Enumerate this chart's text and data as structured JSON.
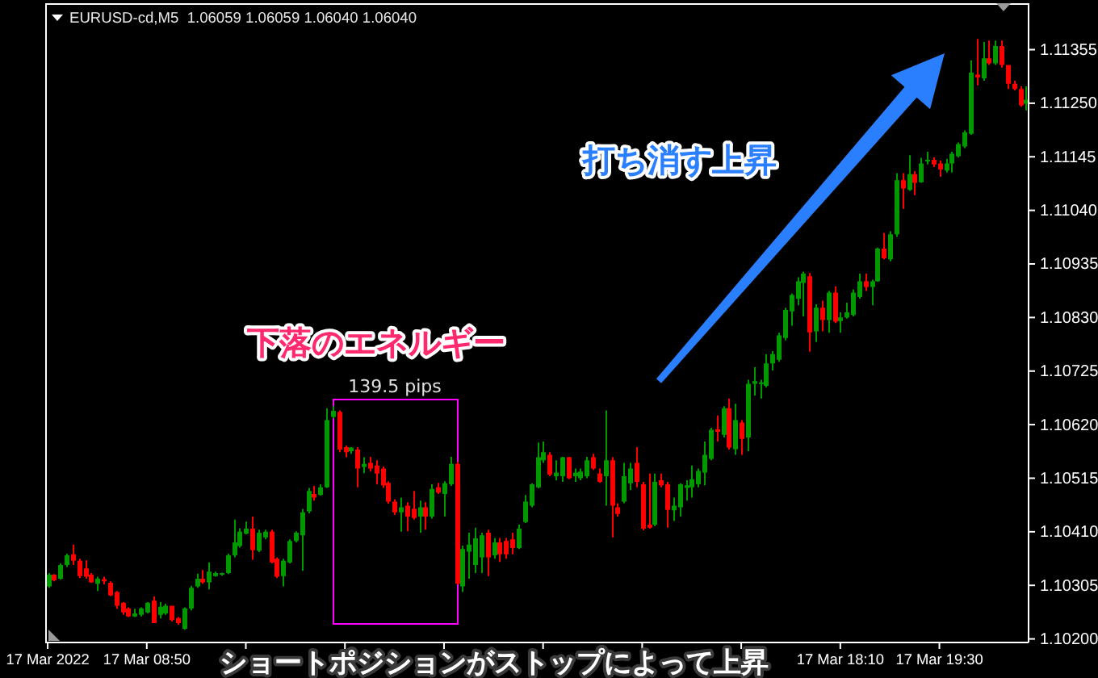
{
  "chart_data": {
    "type": "candlestick",
    "title": "EURUSD-cd,M5  1.06059 1.06059 1.06040 1.06040",
    "x": [
      "2022-03-17T07:30",
      "2022-03-17T07:35",
      "2022-03-17T07:40",
      "2022-03-17T07:45",
      "2022-03-17T07:50",
      "2022-03-17T07:55",
      "2022-03-17T08:00",
      "2022-03-17T08:05",
      "2022-03-17T08:10",
      "2022-03-17T08:15",
      "2022-03-17T08:20",
      "2022-03-17T08:25",
      "2022-03-17T08:30",
      "2022-03-17T08:35",
      "2022-03-17T08:40",
      "2022-03-17T08:45",
      "2022-03-17T08:50",
      "2022-03-17T08:55",
      "2022-03-17T09:00",
      "2022-03-17T09:05",
      "2022-03-17T09:10",
      "2022-03-17T09:15",
      "2022-03-17T09:20",
      "2022-03-17T09:25",
      "2022-03-17T09:30",
      "2022-03-17T09:35",
      "2022-03-17T09:40",
      "2022-03-17T09:45",
      "2022-03-17T09:50",
      "2022-03-17T09:55",
      "2022-03-17T10:00",
      "2022-03-17T10:05",
      "2022-03-17T10:10",
      "2022-03-17T10:15",
      "2022-03-17T10:20",
      "2022-03-17T10:25",
      "2022-03-17T10:30",
      "2022-03-17T10:35",
      "2022-03-17T10:40",
      "2022-03-17T10:45",
      "2022-03-17T10:50",
      "2022-03-17T10:55",
      "2022-03-17T11:00",
      "2022-03-17T11:05",
      "2022-03-17T11:10",
      "2022-03-17T11:15",
      "2022-03-17T11:20",
      "2022-03-17T11:25",
      "2022-03-17T11:30",
      "2022-03-17T11:35",
      "2022-03-17T11:40",
      "2022-03-17T11:45",
      "2022-03-17T11:50",
      "2022-03-17T11:55",
      "2022-03-17T12:00",
      "2022-03-17T12:05",
      "2022-03-17T12:10",
      "2022-03-17T12:15",
      "2022-03-17T12:20",
      "2022-03-17T12:25",
      "2022-03-17T12:30",
      "2022-03-17T12:35",
      "2022-03-17T12:40",
      "2022-03-17T12:45",
      "2022-03-17T12:50",
      "2022-03-17T12:55",
      "2022-03-17T13:00",
      "2022-03-17T13:05",
      "2022-03-17T13:10",
      "2022-03-17T13:15",
      "2022-03-17T13:20",
      "2022-03-17T13:25",
      "2022-03-17T13:30",
      "2022-03-17T13:35",
      "2022-03-17T13:40",
      "2022-03-17T13:45",
      "2022-03-17T13:50",
      "2022-03-17T13:55",
      "2022-03-17T14:00",
      "2022-03-17T14:05",
      "2022-03-17T14:10",
      "2022-03-17T14:15",
      "2022-03-17T14:20",
      "2022-03-17T14:25",
      "2022-03-17T14:30",
      "2022-03-17T14:35",
      "2022-03-17T14:40",
      "2022-03-17T14:45",
      "2022-03-17T14:50",
      "2022-03-17T14:55",
      "2022-03-17T15:00",
      "2022-03-17T15:05",
      "2022-03-17T15:10",
      "2022-03-17T15:15",
      "2022-03-17T15:20",
      "2022-03-17T15:25",
      "2022-03-17T15:30",
      "2022-03-17T15:35",
      "2022-03-17T15:40",
      "2022-03-17T15:45",
      "2022-03-17T15:50",
      "2022-03-17T15:55",
      "2022-03-17T16:00",
      "2022-03-17T16:05",
      "2022-03-17T16:10",
      "2022-03-17T16:15",
      "2022-03-17T16:20",
      "2022-03-17T16:25",
      "2022-03-17T16:30",
      "2022-03-17T16:35",
      "2022-03-17T16:40",
      "2022-03-17T16:45",
      "2022-03-17T16:50",
      "2022-03-17T16:55",
      "2022-03-17T17:00",
      "2022-03-17T17:05",
      "2022-03-17T17:10",
      "2022-03-17T17:15",
      "2022-03-17T17:20",
      "2022-03-17T17:25",
      "2022-03-17T17:30",
      "2022-03-17T17:35",
      "2022-03-17T17:40",
      "2022-03-17T17:45",
      "2022-03-17T17:50",
      "2022-03-17T17:55",
      "2022-03-17T18:00",
      "2022-03-17T18:05",
      "2022-03-17T18:10",
      "2022-03-17T18:15",
      "2022-03-17T18:20",
      "2022-03-17T18:25",
      "2022-03-17T18:30",
      "2022-03-17T18:35",
      "2022-03-17T18:40",
      "2022-03-17T18:45",
      "2022-03-17T18:50",
      "2022-03-17T18:55",
      "2022-03-17T19:00",
      "2022-03-17T19:05",
      "2022-03-17T19:10",
      "2022-03-17T19:15",
      "2022-03-17T19:20",
      "2022-03-17T19:25",
      "2022-03-17T19:30",
      "2022-03-17T19:35",
      "2022-03-17T19:40",
      "2022-03-17T19:45",
      "2022-03-17T19:50",
      "2022-03-17T19:55",
      "2022-03-17T20:00",
      "2022-03-17T20:05",
      "2022-03-17T20:10",
      "2022-03-17T20:15",
      "2022-03-17T20:20",
      "2022-03-17T20:25",
      "2022-03-17T20:30",
      "2022-03-17T20:35",
      "2022-03-17T20:40"
    ],
    "ohlc": [
      [
        1.10303,
        1.10329,
        1.103,
        1.10326
      ],
      [
        1.10326,
        1.10327,
        1.10313,
        1.10315
      ],
      [
        1.10318,
        1.10348,
        1.10316,
        1.10345
      ],
      [
        1.10345,
        1.10367,
        1.10341,
        1.10364
      ],
      [
        1.10366,
        1.10385,
        1.10345,
        1.10353
      ],
      [
        1.10353,
        1.10357,
        1.10319,
        1.10323
      ],
      [
        1.10338,
        1.10354,
        1.10318,
        1.10322
      ],
      [
        1.10326,
        1.10329,
        1.1031,
        1.10311
      ],
      [
        1.10308,
        1.10322,
        1.10294,
        1.10318
      ],
      [
        1.10317,
        1.10322,
        1.10307,
        1.10313
      ],
      [
        1.1031,
        1.10313,
        1.10284,
        1.10285
      ],
      [
        1.10292,
        1.10294,
        1.10259,
        1.10265
      ],
      [
        1.10271,
        1.10272,
        1.10247,
        1.10252
      ],
      [
        1.1026,
        1.10262,
        1.10243,
        1.10244
      ],
      [
        1.10244,
        1.10259,
        1.10243,
        1.1025
      ],
      [
        1.10247,
        1.10262,
        1.10244,
        1.1026
      ],
      [
        1.10252,
        1.10272,
        1.1025,
        1.10271
      ],
      [
        1.10275,
        1.10283,
        1.10231,
        1.10231
      ],
      [
        1.10247,
        1.10272,
        1.1024,
        1.10263
      ],
      [
        1.1025,
        1.10269,
        1.10247,
        1.10265
      ],
      [
        1.10265,
        1.10265,
        1.10234,
        1.10237
      ],
      [
        1.10241,
        1.10243,
        1.10228,
        1.10231
      ],
      [
        1.1022,
        1.10262,
        1.10218,
        1.1026
      ],
      [
        1.1026,
        1.10304,
        1.10256,
        1.103
      ],
      [
        1.10303,
        1.10328,
        1.103,
        1.10318
      ],
      [
        1.10318,
        1.10335,
        1.10308,
        1.10311
      ],
      [
        1.10311,
        1.1035,
        1.10297,
        1.10332
      ],
      [
        1.10323,
        1.10332,
        1.10322,
        1.10329
      ],
      [
        1.10326,
        1.1033,
        1.10324,
        1.10329
      ],
      [
        1.10329,
        1.10367,
        1.10327,
        1.10364
      ],
      [
        1.10364,
        1.10434,
        1.1036,
        1.10389
      ],
      [
        1.10382,
        1.10417,
        1.10379,
        1.1041
      ],
      [
        1.10406,
        1.1043,
        1.10405,
        1.10416
      ],
      [
        1.10416,
        1.1044,
        1.10355,
        1.10374
      ],
      [
        1.10373,
        1.10414,
        1.1037,
        1.10408
      ],
      [
        1.10399,
        1.10414,
        1.10395,
        1.1041
      ],
      [
        1.1041,
        1.10414,
        1.10348,
        1.1035
      ],
      [
        1.10357,
        1.1036,
        1.10319,
        1.10322
      ],
      [
        1.10323,
        1.10357,
        1.10303,
        1.10353
      ],
      [
        1.1035,
        1.10395,
        1.10348,
        1.10392
      ],
      [
        1.10392,
        1.10411,
        1.10389,
        1.10408
      ],
      [
        1.10403,
        1.10455,
        1.10334,
        1.10448
      ],
      [
        1.1045,
        1.10496,
        1.10446,
        1.1049
      ],
      [
        1.10484,
        1.105,
        1.10471,
        1.10477
      ],
      [
        1.10482,
        1.10503,
        1.10481,
        1.10497
      ],
      [
        1.10497,
        1.10652,
        1.10496,
        1.10629
      ],
      [
        1.10635,
        1.10656,
        1.10632,
        1.10647
      ],
      [
        1.10645,
        1.10648,
        1.10566,
        1.10571
      ],
      [
        1.10576,
        1.10579,
        1.10556,
        1.10566
      ],
      [
        1.10568,
        1.10576,
        1.10563,
        1.10575
      ],
      [
        1.10571,
        1.10576,
        1.10497,
        1.10534
      ],
      [
        1.10537,
        1.10556,
        1.10525,
        1.10543
      ],
      [
        1.10545,
        1.10557,
        1.10528,
        1.10534
      ],
      [
        1.1054,
        1.1055,
        1.10503,
        1.10524
      ],
      [
        1.10534,
        1.10538,
        1.10496,
        1.10501
      ],
      [
        1.10506,
        1.10509,
        1.10465,
        1.10469
      ],
      [
        1.10469,
        1.10474,
        1.10443,
        1.10448
      ],
      [
        1.10448,
        1.10477,
        1.1041,
        1.10458
      ],
      [
        1.10461,
        1.10468,
        1.10411,
        1.1044
      ],
      [
        1.10455,
        1.1049,
        1.10434,
        1.10437
      ],
      [
        1.1044,
        1.10471,
        1.10408,
        1.10458
      ],
      [
        1.10458,
        1.10468,
        1.10414,
        1.1044
      ],
      [
        1.1044,
        1.10503,
        1.10436,
        1.10494
      ],
      [
        1.10497,
        1.10506,
        1.10484,
        1.10487
      ],
      [
        1.10484,
        1.10509,
        1.1044,
        1.10505
      ],
      [
        1.10503,
        1.10557,
        1.105,
        1.10543
      ],
      [
        1.10543,
        1.10547,
        1.10307,
        1.10308
      ],
      [
        1.10303,
        1.10383,
        1.10292,
        1.10376
      ],
      [
        1.10371,
        1.10408,
        1.10318,
        1.10385
      ],
      [
        1.10345,
        1.10418,
        1.10329,
        1.10397
      ],
      [
        1.1036,
        1.10408,
        1.10329,
        1.10403
      ],
      [
        1.10408,
        1.10414,
        1.10323,
        1.1036
      ],
      [
        1.10364,
        1.10398,
        1.10357,
        1.10389
      ],
      [
        1.10389,
        1.10398,
        1.10351,
        1.10366
      ],
      [
        1.10392,
        1.10398,
        1.10357,
        1.10366
      ],
      [
        1.10395,
        1.10408,
        1.10366,
        1.10378
      ],
      [
        1.10378,
        1.10424,
        1.10376,
        1.10416
      ],
      [
        1.10429,
        1.10482,
        1.10427,
        1.10469
      ],
      [
        1.10461,
        1.10505,
        1.10458,
        1.10503
      ],
      [
        1.10497,
        1.10585,
        1.10495,
        1.10556
      ],
      [
        1.1055,
        1.10587,
        1.10545,
        1.10566
      ],
      [
        1.10561,
        1.10566,
        1.10519,
        1.10522
      ],
      [
        1.10519,
        1.1055,
        1.10511,
        1.10526
      ],
      [
        1.10519,
        1.10557,
        1.10508,
        1.10556
      ],
      [
        1.10556,
        1.10557,
        1.10513,
        1.10515
      ],
      [
        1.10519,
        1.10534,
        1.10508,
        1.10526
      ],
      [
        1.10515,
        1.10534,
        1.10511,
        1.10528
      ],
      [
        1.10519,
        1.10557,
        1.10515,
        1.1055
      ],
      [
        1.10556,
        1.10563,
        1.10531,
        1.10534
      ],
      [
        1.10524,
        1.10534,
        1.10506,
        1.10508
      ],
      [
        1.10519,
        1.10648,
        1.10461,
        1.1055
      ],
      [
        1.1055,
        1.10556,
        1.10399,
        1.10461
      ],
      [
        1.10458,
        1.10466,
        1.1044,
        1.10445
      ],
      [
        1.10469,
        1.10545,
        1.10466,
        1.10519
      ],
      [
        1.10505,
        1.10545,
        1.10492,
        1.10534
      ],
      [
        1.10545,
        1.10576,
        1.10497,
        1.10508
      ],
      [
        1.10503,
        1.10508,
        1.10413,
        1.10416
      ],
      [
        1.10424,
        1.10524,
        1.10416,
        1.10418
      ],
      [
        1.10424,
        1.10524,
        1.10421,
        1.10508
      ],
      [
        1.10511,
        1.10524,
        1.10497,
        1.10501
      ],
      [
        1.10503,
        1.10508,
        1.10418,
        1.10453
      ],
      [
        1.10452,
        1.10477,
        1.10431,
        1.10461
      ],
      [
        1.10458,
        1.10505,
        1.1044,
        1.10503
      ],
      [
        1.10496,
        1.10511,
        1.10471,
        1.10501
      ],
      [
        1.10497,
        1.1054,
        1.10477,
        1.10513
      ],
      [
        1.10503,
        1.10534,
        1.10497,
        1.10529
      ],
      [
        1.10526,
        1.10587,
        1.10501,
        1.10561
      ],
      [
        1.10553,
        1.10614,
        1.1055,
        1.1061
      ],
      [
        1.10611,
        1.10638,
        1.10587,
        1.10606
      ],
      [
        1.106,
        1.10656,
        1.10595,
        1.10652
      ],
      [
        1.10652,
        1.10671,
        1.10571,
        1.10575
      ],
      [
        1.10572,
        1.10661,
        1.10561,
        1.10629
      ],
      [
        1.10624,
        1.10629,
        1.10561,
        1.10592
      ],
      [
        1.10595,
        1.10708,
        1.10568,
        1.107
      ],
      [
        1.107,
        1.10733,
        1.10677,
        1.10705
      ],
      [
        1.10701,
        1.10708,
        1.10671,
        1.10703
      ],
      [
        1.10696,
        1.10758,
        1.10693,
        1.1074
      ],
      [
        1.1074,
        1.10764,
        1.10726,
        1.10758
      ],
      [
        1.10747,
        1.108,
        1.10743,
        1.10795
      ],
      [
        1.1079,
        1.10849,
        1.10785,
        1.10845
      ],
      [
        1.10842,
        1.10877,
        1.10814,
        1.10874
      ],
      [
        1.10867,
        1.10909,
        1.10854,
        1.10901
      ],
      [
        1.10898,
        1.1092,
        1.10832,
        1.10916
      ],
      [
        1.10911,
        1.10917,
        1.10763,
        1.10801
      ],
      [
        1.10803,
        1.10856,
        1.10782,
        1.10849
      ],
      [
        1.10849,
        1.10863,
        1.10803,
        1.10825
      ],
      [
        1.10825,
        1.10882,
        1.108,
        1.10879
      ],
      [
        1.10879,
        1.10891,
        1.10819,
        1.10822
      ],
      [
        1.10823,
        1.1084,
        1.108,
        1.1083
      ],
      [
        1.1083,
        1.10859,
        1.10828,
        1.1084
      ],
      [
        1.10835,
        1.10885,
        1.10832,
        1.10879
      ],
      [
        1.1087,
        1.10916,
        1.10867,
        1.10901
      ],
      [
        1.10901,
        1.10916,
        1.10882,
        1.1089
      ],
      [
        1.1089,
        1.10904,
        1.10854,
        1.10901
      ],
      [
        1.10901,
        1.10967,
        1.109,
        1.10965
      ],
      [
        1.10965,
        1.10996,
        1.10944,
        1.10946
      ],
      [
        1.10944,
        1.10999,
        1.1094,
        1.10993
      ],
      [
        1.10993,
        1.11113,
        1.10988,
        1.11099
      ],
      [
        1.11099,
        1.11113,
        1.11043,
        1.11083
      ],
      [
        1.1108,
        1.11148,
        1.11078,
        1.11111
      ],
      [
        1.11111,
        1.11117,
        1.1107,
        1.11094
      ],
      [
        1.11095,
        1.11143,
        1.11094,
        1.11132
      ],
      [
        1.11136,
        1.11155,
        1.1113,
        1.11139
      ],
      [
        1.11139,
        1.11144,
        1.11125,
        1.1113
      ],
      [
        1.11132,
        1.11138,
        1.11106,
        1.1112
      ],
      [
        1.11118,
        1.11141,
        1.11114,
        1.11132
      ],
      [
        1.11132,
        1.11155,
        1.11114,
        1.11151
      ],
      [
        1.11146,
        1.11173,
        1.11144,
        1.1117
      ],
      [
        1.11165,
        1.11197,
        1.11162,
        1.11193
      ],
      [
        1.1119,
        1.11334,
        1.11188,
        1.1131
      ],
      [
        1.11306,
        1.11376,
        1.11285,
        1.11301
      ],
      [
        1.11299,
        1.1137,
        1.11294,
        1.11338
      ],
      [
        1.11338,
        1.11373,
        1.11325,
        1.11328
      ],
      [
        1.11328,
        1.11373,
        1.11325,
        1.11362
      ],
      [
        1.11362,
        1.11373,
        1.1132,
        1.11325
      ],
      [
        1.11325,
        1.11325,
        1.11278,
        1.11288
      ],
      [
        1.11288,
        1.11294,
        1.11275,
        1.11278
      ],
      [
        1.11278,
        1.11283,
        1.11243,
        1.11246
      ],
      [
        1.11249,
        1.11283,
        1.11236,
        1.11257
      ]
    ],
    "colors": [
      "#009900",
      "#ff0000",
      "#009900",
      "#009900",
      "#ff0000",
      "#ff0000",
      "#ff0000",
      "#ff0000",
      "#009900",
      "#ff0000",
      "#ff0000",
      "#ff0000",
      "#ff0000",
      "#ff0000",
      "#009900",
      "#009900",
      "#009900",
      "#ff0000",
      "#009900",
      "#009900",
      "#ff0000",
      "#ff0000",
      "#009900",
      "#009900",
      "#009900",
      "#ff0000",
      "#009900",
      "#009900",
      "#009900",
      "#009900",
      "#009900",
      "#009900",
      "#009900",
      "#ff0000",
      "#009900",
      "#009900",
      "#ff0000",
      "#ff0000",
      "#009900",
      "#009900",
      "#009900",
      "#009900",
      "#009900",
      "#ff0000",
      "#009900",
      "#009900",
      "#009900",
      "#ff0000",
      "#ff0000",
      "#009900",
      "#ff0000",
      "#009900",
      "#ff0000",
      "#ff0000",
      "#ff0000",
      "#ff0000",
      "#ff0000",
      "#009900",
      "#ff0000",
      "#ff0000",
      "#009900",
      "#ff0000",
      "#009900",
      "#ff0000",
      "#009900",
      "#009900",
      "#ff0000",
      "#009900",
      "#009900",
      "#009900",
      "#009900",
      "#ff0000",
      "#009900",
      "#ff0000",
      "#ff0000",
      "#ff0000",
      "#009900",
      "#009900",
      "#009900",
      "#009900",
      "#009900",
      "#ff0000",
      "#009900",
      "#009900",
      "#ff0000",
      "#009900",
      "#009900",
      "#009900",
      "#ff0000",
      "#ff0000",
      "#009900",
      "#ff0000",
      "#ff0000",
      "#009900",
      "#009900",
      "#ff0000",
      "#ff0000",
      "#ff0000",
      "#009900",
      "#ff0000",
      "#ff0000",
      "#009900",
      "#009900",
      "#009900",
      "#009900",
      "#009900",
      "#009900",
      "#009900",
      "#ff0000",
      "#009900",
      "#ff0000",
      "#009900",
      "#ff0000",
      "#009900",
      "#009900",
      "#009900",
      "#009900",
      "#009900",
      "#009900",
      "#009900",
      "#009900",
      "#009900",
      "#009900",
      "#ff0000",
      "#009900",
      "#ff0000",
      "#009900",
      "#ff0000",
      "#009900",
      "#009900",
      "#009900",
      "#009900",
      "#ff0000",
      "#009900",
      "#009900",
      "#ff0000",
      "#009900",
      "#009900",
      "#ff0000",
      "#009900",
      "#ff0000",
      "#009900",
      "#009900",
      "#ff0000",
      "#ff0000",
      "#009900",
      "#009900",
      "#009900",
      "#009900",
      "#009900",
      "#ff0000",
      "#009900",
      "#ff0000",
      "#009900",
      "#ff0000",
      "#ff0000",
      "#ff0000",
      "#ff0000",
      "#009900"
    ],
    "xlim": [
      "2022-03-17T07:28",
      "2022-03-17T20:42"
    ],
    "xticks": [
      {
        "value": "2022-03-17T07:30",
        "label": "17 Mar 2022"
      },
      {
        "value": "2022-03-17T08:50",
        "label": "17 Mar 08:50"
      },
      {
        "value": "2022-03-17T10:10",
        "label": null
      },
      {
        "value": "2022-03-17T11:30",
        "label": null
      },
      {
        "value": "2022-03-17T12:50",
        "label": null
      },
      {
        "value": "2022-03-17T14:10",
        "label": null
      },
      {
        "value": "2022-03-17T15:30",
        "label": null
      },
      {
        "value": "2022-03-17T16:50",
        "label": null
      },
      {
        "value": "2022-03-17T18:10",
        "label": "17 Mar 18:10"
      },
      {
        "value": "2022-03-17T19:30",
        "label": "17 Mar 19:30"
      }
    ],
    "ylim": [
      1.10193,
      1.11446
    ],
    "yticks": [
      {
        "value": 1.102,
        "label": "1.10200"
      },
      1.10305,
      {
        "value": 1.1041,
        "label": "1.10410"
      },
      1.10515,
      {
        "value": 1.1062,
        "label": "1.10620"
      },
      1.10725,
      {
        "value": 1.1083,
        "label": "1.10830"
      },
      1.10935,
      {
        "value": 1.1104,
        "label": "1.11040"
      },
      1.11145,
      {
        "value": 1.1125,
        "label": "1.11250"
      },
      1.11355
    ],
    "annotations": [
      "下落のエネルギー",
      "139.5 pips",
      "打ち消す上昇",
      "ショートポジションがストップによって上昇"
    ]
  }
}
